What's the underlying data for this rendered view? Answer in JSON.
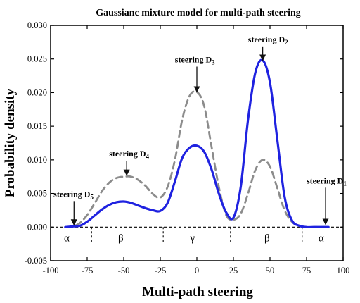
{
  "chart_data": {
    "type": "line",
    "title": "Gaussianc mixture model for multi-path steering",
    "xlabel": "Multi-path steering",
    "ylabel": "Probability density",
    "xlim": [
      -100,
      100
    ],
    "ylim": [
      -0.005,
      0.03
    ],
    "x_ticks": [
      -100,
      -75,
      -50,
      -25,
      0,
      25,
      50,
      75,
      100
    ],
    "x_tick_labels": [
      "-100",
      "-75",
      "-50",
      "-25",
      "0",
      "25",
      "50",
      "75",
      "100"
    ],
    "y_ticks": [
      -0.005,
      0,
      0.005,
      0.01,
      0.015,
      0.02,
      0.025,
      0.03
    ],
    "y_tick_labels": [
      "-0.005",
      "0.000",
      "0.005",
      "0.010",
      "0.015",
      "0.020",
      "0.025",
      "0.030"
    ],
    "x": [
      -90,
      -85,
      -80,
      -75,
      -70,
      -65,
      -60,
      -55,
      -50,
      -45,
      -40,
      -35,
      -30,
      -25,
      -20,
      -15,
      -10,
      -5,
      0,
      5,
      10,
      15,
      20,
      25,
      30,
      35,
      40,
      45,
      50,
      55,
      60,
      65,
      70,
      75,
      80,
      85,
      90
    ],
    "series": [
      {
        "style": "solid",
        "color": "#1f22e0",
        "values": [
          0.0,
          0.0001,
          0.0002,
          0.0008,
          0.0017,
          0.0026,
          0.0033,
          0.0037,
          0.0038,
          0.0036,
          0.0032,
          0.0028,
          0.0025,
          0.0024,
          0.0036,
          0.0068,
          0.0103,
          0.0118,
          0.0121,
          0.0112,
          0.0086,
          0.005,
          0.0022,
          0.0014,
          0.006,
          0.016,
          0.023,
          0.0248,
          0.0215,
          0.013,
          0.0045,
          0.001,
          0.0002,
          0.0,
          0.0,
          0.0,
          0.0
        ]
      },
      {
        "style": "dashed",
        "color": "#8c8c8c",
        "values": [
          0.0,
          0.0001,
          0.0006,
          0.0018,
          0.0035,
          0.0053,
          0.0066,
          0.0073,
          0.0075,
          0.0075,
          0.007,
          0.0061,
          0.0049,
          0.0044,
          0.006,
          0.01,
          0.016,
          0.0195,
          0.0201,
          0.018,
          0.012,
          0.006,
          0.0018,
          0.0011,
          0.002,
          0.005,
          0.0085,
          0.01,
          0.009,
          0.0058,
          0.0025,
          0.0008,
          0.0002,
          0.0,
          0.0,
          0.0,
          0.0
        ]
      }
    ],
    "annotations": [
      {
        "text": "steering D",
        "sub": "1",
        "x": 75,
        "y": 0.0065,
        "arrow_to": [
          88,
          0.0004
        ]
      },
      {
        "text": "steering D",
        "sub": "2",
        "x": 35,
        "y": 0.0275,
        "arrow_to": [
          45,
          0.0248
        ]
      },
      {
        "text": "steering D",
        "sub": "3",
        "x": -15,
        "y": 0.0245,
        "arrow_to": [
          0,
          0.0201
        ]
      },
      {
        "text": "steering D",
        "sub": "4",
        "x": -60,
        "y": 0.0105,
        "arrow_to": [
          -48,
          0.0077
        ]
      },
      {
        "text": "steering D",
        "sub": "5",
        "x": -98,
        "y": 0.0045,
        "arrow_to": [
          -84,
          0.0003
        ]
      }
    ],
    "region_labels": [
      {
        "text": "α",
        "x": -89
      },
      {
        "text": "β",
        "x": -52
      },
      {
        "text": "γ",
        "x": -3
      },
      {
        "text": "β",
        "x": 48
      },
      {
        "text": "α",
        "x": 85
      }
    ],
    "region_boundaries": [
      -72,
      -23,
      23,
      72
    ],
    "zero_line": "dashed",
    "grid": false
  }
}
